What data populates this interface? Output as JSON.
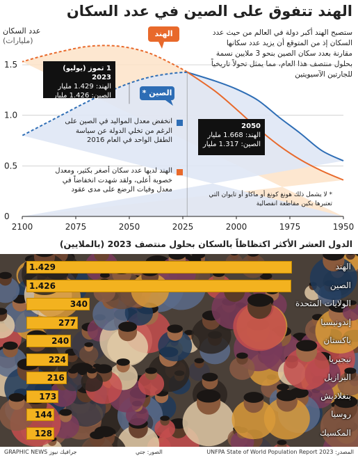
{
  "title": "الهند تتفوق على الصين في عدد السكان",
  "y_axis": {
    "label": "عدد السكان",
    "unit": "(مليارات)"
  },
  "intro": "ستصبح الهند أكبر دولة في العالم من حيث عدد السكان إذ من المتوقع أن يزيد عدد سكانها مقارنة بعدد سكان الصين بنحو 3 ملايين نسمة بحلول منتصف هذا العام، مما يمثل تحولاً تاريخياً للجارتين الآسيويتين",
  "tags": {
    "india": "الهند",
    "china": "الصين *"
  },
  "callout_2023": {
    "date": "1 تموز (يوليو) 2023",
    "india": "الهند: 1.429 مليار",
    "china": "الصين: 1.426 مليار"
  },
  "callout_2050": {
    "year": "2050",
    "india": "الهند: 1.668 مليار",
    "china": "الصين: 1.317 مليار"
  },
  "note_china": "انخفض معدل المواليد في الصين على الرغم من تخلي الدولة عن سياسة الطفل الواحد في العام 2016",
  "note_india": "الهند لديها عدد سكان أصغر بكثير، ومعدل خصوبة أعلى، ولقد شهدت انخفاضاً في معدل وفيات الرضع على مدى عقود",
  "footnote": "* لا يشمل ذلك هونغ كونغ أو ماكاو أو تايوان التي تعتبرها بكين مقاطعة انفصالية",
  "colors": {
    "india": "#e8692b",
    "china": "#2d6db5",
    "bar": "#f3b21f",
    "india_fill": "#fde3c8",
    "china_fill": "#dfe7f5"
  },
  "chart_data": [
    {
      "type": "line",
      "x_direction": "reversed",
      "xlim": [
        1950,
        2100
      ],
      "ylim": [
        0,
        1.7
      ],
      "x_ticks": [
        "2100",
        "2075",
        "2050",
        "2025",
        "2000",
        "1975",
        "1950"
      ],
      "y_ticks": [
        "0",
        "0.5",
        "1.0",
        "1.5"
      ],
      "series": [
        {
          "name": "الهند",
          "style": "solid before 2023, dashed projection after",
          "x": [
            1950,
            1960,
            1970,
            1980,
            1990,
            2000,
            2010,
            2023,
            2030,
            2040,
            2050,
            2060,
            2070,
            2080,
            2090,
            2100
          ],
          "y": [
            0.36,
            0.45,
            0.56,
            0.7,
            0.87,
            1.06,
            1.24,
            1.429,
            1.51,
            1.61,
            1.668,
            1.69,
            1.68,
            1.64,
            1.59,
            1.53
          ]
        },
        {
          "name": "الصين",
          "style": "solid before 2023, dashed projection after",
          "x": [
            1950,
            1960,
            1970,
            1980,
            1990,
            2000,
            2010,
            2023,
            2030,
            2040,
            2050,
            2060,
            2070,
            2080,
            2090,
            2100
          ],
          "y": [
            0.55,
            0.65,
            0.82,
            0.98,
            1.15,
            1.26,
            1.34,
            1.426,
            1.415,
            1.38,
            1.317,
            1.23,
            1.13,
            1.02,
            0.91,
            0.8
          ]
        }
      ]
    },
    {
      "type": "bar",
      "orientation": "horizontal",
      "title": "الدول العشر الأكثر اكتظاظاً بالسكان بحلول منتصف 2023 (بالملايين)",
      "categories": [
        "الهند",
        "الصين",
        "الولايات المتحدة",
        "إندونيسيا",
        "باكستان",
        "نيجيريا",
        "البرازيل",
        "بنغلاديش",
        "روسيا",
        "المكسيك"
      ],
      "values": [
        1429,
        1426,
        340,
        277,
        240,
        224,
        216,
        173,
        144,
        128
      ],
      "labels": [
        "1.429",
        "1.426",
        "340",
        "277",
        "240",
        "224",
        "216",
        "173",
        "144",
        "128"
      ]
    }
  ],
  "footer": {
    "source": "المصدر: UNFPA State of World Population Report 2023",
    "photo": "الصور: جتي",
    "brand": "GRAPHIC NEWS جرافيك نيوز"
  }
}
